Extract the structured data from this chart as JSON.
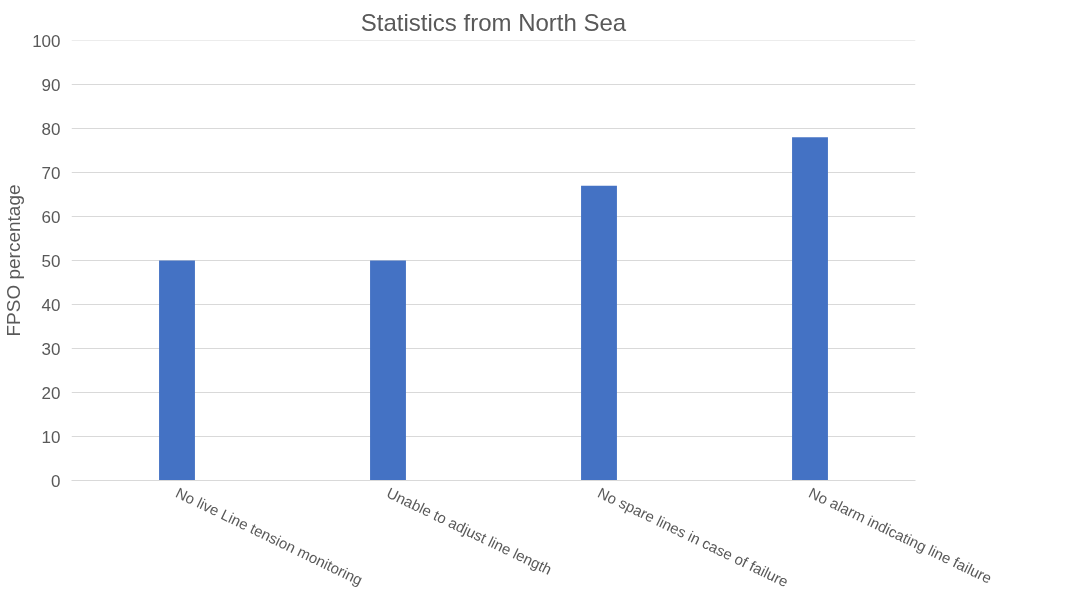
{
  "chart_data": {
    "type": "bar",
    "title": "Statistics from North Sea",
    "ylabel": "FPSO percentage",
    "categories": [
      "No live Line tension monitoring",
      "Unable to adjust line length",
      "No spare lines in case of failure",
      "No alarm indicating line failure"
    ],
    "values": [
      50,
      50,
      67,
      78
    ],
    "color": "#4472c4",
    "ylim": [
      0,
      100
    ],
    "yticks": [
      0,
      10,
      20,
      30,
      40,
      50,
      60,
      70,
      80,
      90,
      100
    ],
    "grid": "y"
  }
}
